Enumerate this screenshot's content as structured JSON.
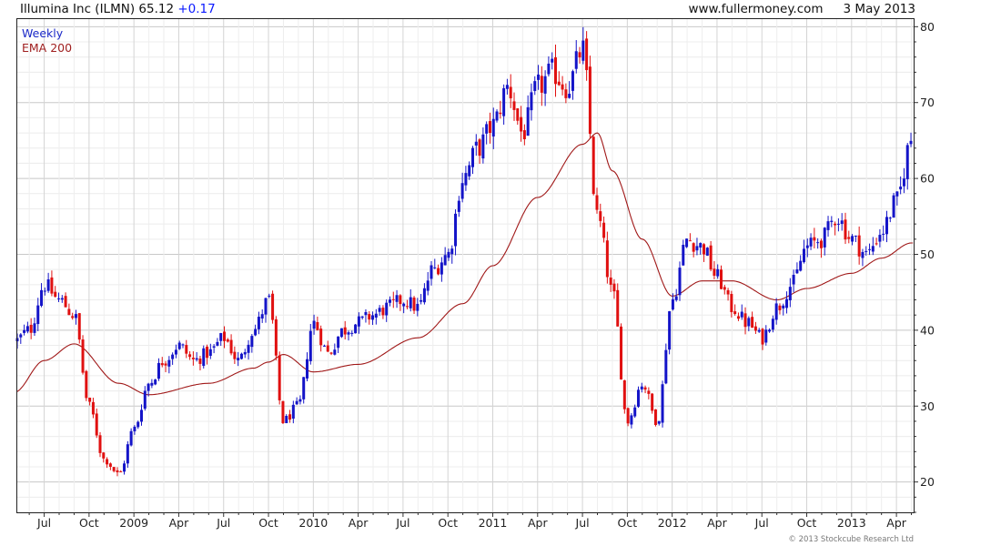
{
  "header": {
    "left_title": "Illumina Inc (ILMN) 65.12",
    "change": "+0.17",
    "site": "www.fullermoney.com",
    "date": "3 May 2013"
  },
  "legend": {
    "period": "Weekly",
    "indicator": "EMA 200"
  },
  "copyright": "© 2013 Stockcube Research Ltd",
  "colors": {
    "up_bar": "#1414c8",
    "down_bar": "#e01010",
    "ema": "#a01818",
    "grid": "#d8d8d8",
    "frame": "#222222"
  },
  "chart_data": {
    "type": "candlestick",
    "interval": "weekly",
    "ylim": [
      16,
      81
    ],
    "y_ticks": [
      20,
      30,
      40,
      50,
      60,
      70,
      80
    ],
    "x_tick_labels": [
      "Jul",
      "Oct",
      "2009",
      "Apr",
      "Jul",
      "Oct",
      "2010",
      "Apr",
      "Jul",
      "Oct",
      "2011",
      "Apr",
      "Jul",
      "Oct",
      "2012",
      "Apr",
      "Jul",
      "Oct",
      "2013",
      "Apr"
    ],
    "x_range": [
      "2008-05",
      "2013-05"
    ],
    "grid": true,
    "price_anchors": [
      [
        "2008-05",
        38.5
      ],
      [
        "2008-06",
        40
      ],
      [
        "2008-07",
        46
      ],
      [
        "2008-08",
        44
      ],
      [
        "2008-09",
        42
      ],
      [
        "2008-10",
        30
      ],
      [
        "2008-11",
        23
      ],
      [
        "2008-12",
        21
      ],
      [
        "2009-01",
        27
      ],
      [
        "2009-02",
        33
      ],
      [
        "2009-03",
        36
      ],
      [
        "2009-04",
        38
      ],
      [
        "2009-05",
        36
      ],
      [
        "2009-06",
        37
      ],
      [
        "2009-07",
        39
      ],
      [
        "2009-08",
        36
      ],
      [
        "2009-09",
        40
      ],
      [
        "2009-10",
        44
      ],
      [
        "2009-11",
        28
      ],
      [
        "2009-12",
        30
      ],
      [
        "2010-01",
        41
      ],
      [
        "2010-02",
        37
      ],
      [
        "2010-03",
        40
      ],
      [
        "2010-04",
        41
      ],
      [
        "2010-05",
        42
      ],
      [
        "2010-06",
        43
      ],
      [
        "2010-07",
        44
      ],
      [
        "2010-08",
        43
      ],
      [
        "2010-09",
        48
      ],
      [
        "2010-10",
        50
      ],
      [
        "2010-11",
        60
      ],
      [
        "2010-12",
        64
      ],
      [
        "2011-01",
        67
      ],
      [
        "2011-02",
        72
      ],
      [
        "2011-03",
        66
      ],
      [
        "2011-04",
        72
      ],
      [
        "2011-05",
        74
      ],
      [
        "2011-06",
        72
      ],
      [
        "2011-07",
        77
      ],
      [
        "2011-08",
        55
      ],
      [
        "2011-09",
        45
      ],
      [
        "2011-10",
        28
      ],
      [
        "2011-11",
        33
      ],
      [
        "2011-12",
        28
      ],
      [
        "2012-01",
        44
      ],
      [
        "2012-02",
        52
      ],
      [
        "2012-03",
        51
      ],
      [
        "2012-04",
        47
      ],
      [
        "2012-05",
        43
      ],
      [
        "2012-06",
        41
      ],
      [
        "2012-07",
        39
      ],
      [
        "2012-08",
        43
      ],
      [
        "2012-09",
        46
      ],
      [
        "2012-10",
        51
      ],
      [
        "2012-11",
        52
      ],
      [
        "2012-12",
        55
      ],
      [
        "2013-01",
        52
      ],
      [
        "2013-02",
        50
      ],
      [
        "2013-03",
        53
      ],
      [
        "2013-04",
        57
      ],
      [
        "2013-05",
        65.12
      ]
    ],
    "ema200_anchors": [
      [
        "2008-05",
        31.8
      ],
      [
        "2008-07",
        36
      ],
      [
        "2008-09",
        38.2
      ],
      [
        "2008-12",
        33
      ],
      [
        "2009-02",
        31.5
      ],
      [
        "2009-06",
        33
      ],
      [
        "2009-09",
        35
      ],
      [
        "2009-10",
        35.8
      ],
      [
        "2009-11",
        36.8
      ],
      [
        "2010-01",
        34.5
      ],
      [
        "2010-04",
        35.5
      ],
      [
        "2010-08",
        39
      ],
      [
        "2010-11",
        43.5
      ],
      [
        "2011-01",
        48.5
      ],
      [
        "2011-04",
        57.5
      ],
      [
        "2011-07",
        64.5
      ],
      [
        "2011-08",
        66
      ],
      [
        "2011-09",
        61
      ],
      [
        "2011-11",
        52
      ],
      [
        "2012-01",
        44.5
      ],
      [
        "2012-03",
        46.5
      ],
      [
        "2012-05",
        46.5
      ],
      [
        "2012-08",
        44
      ],
      [
        "2012-10",
        45.5
      ],
      [
        "2013-01",
        47.5
      ],
      [
        "2013-03",
        49.5
      ],
      [
        "2013-05",
        51.5
      ]
    ]
  }
}
